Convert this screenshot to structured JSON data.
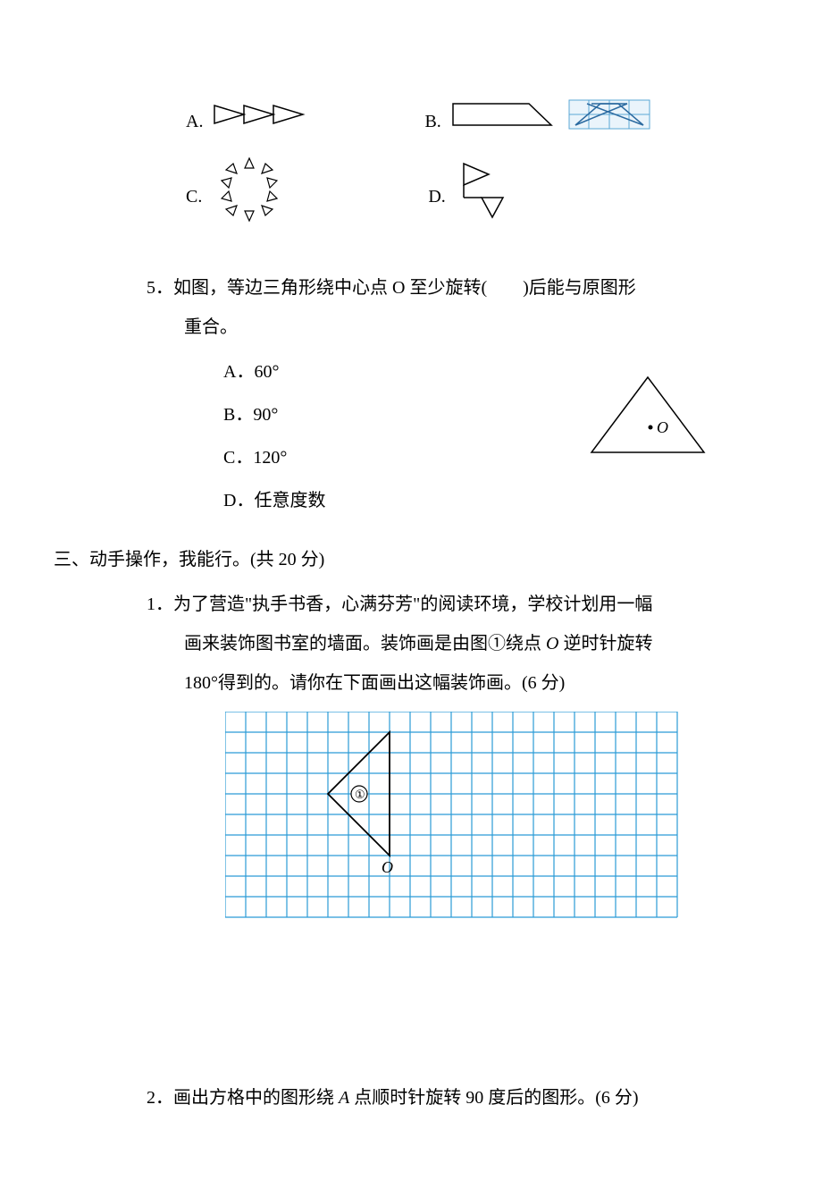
{
  "options4": {
    "A_label": "A.",
    "B_label": "B.",
    "C_label": "C.",
    "D_label": "D.",
    "stroke": "#000000",
    "grid_color": "#5aa7d6",
    "hatch_fill": "#c8e2f2"
  },
  "q5": {
    "number": "5．",
    "line1": "如图，等边三角形绕中心点 O 至少旋转(　　)后能与原图形",
    "line2": "重合。",
    "optA": "A．60°",
    "optB": "B．90°",
    "optC": "C．120°",
    "optD": "D．任意度数",
    "O_label": "O"
  },
  "section3": {
    "title": "三、动手操作，我能行。(共 20 分)"
  },
  "q31": {
    "number": "1．",
    "text1": "为了营造\"执手书香，心满芬芳\"的阅读环境，学校计划用一幅",
    "text2": "画来装饰图书室的墙面。装饰画是由图①绕点 ",
    "text2_var": "O",
    "text2_after": " 逆时针旋转",
    "text3": "180°得到的。请你在下面画出这幅装饰画。(6 分)",
    "circle_label": "①",
    "O_label": "O",
    "grid": {
      "cols": 22,
      "rows": 10,
      "cell": 23,
      "line_color": "#2b9bd6",
      "bg": "#ffffff"
    }
  },
  "q32": {
    "number": "2．",
    "text_before": "画出方格中的图形绕 ",
    "var": "A",
    "text_after": " 点顺时针旋转 90 度后的图形。(6 分)"
  }
}
